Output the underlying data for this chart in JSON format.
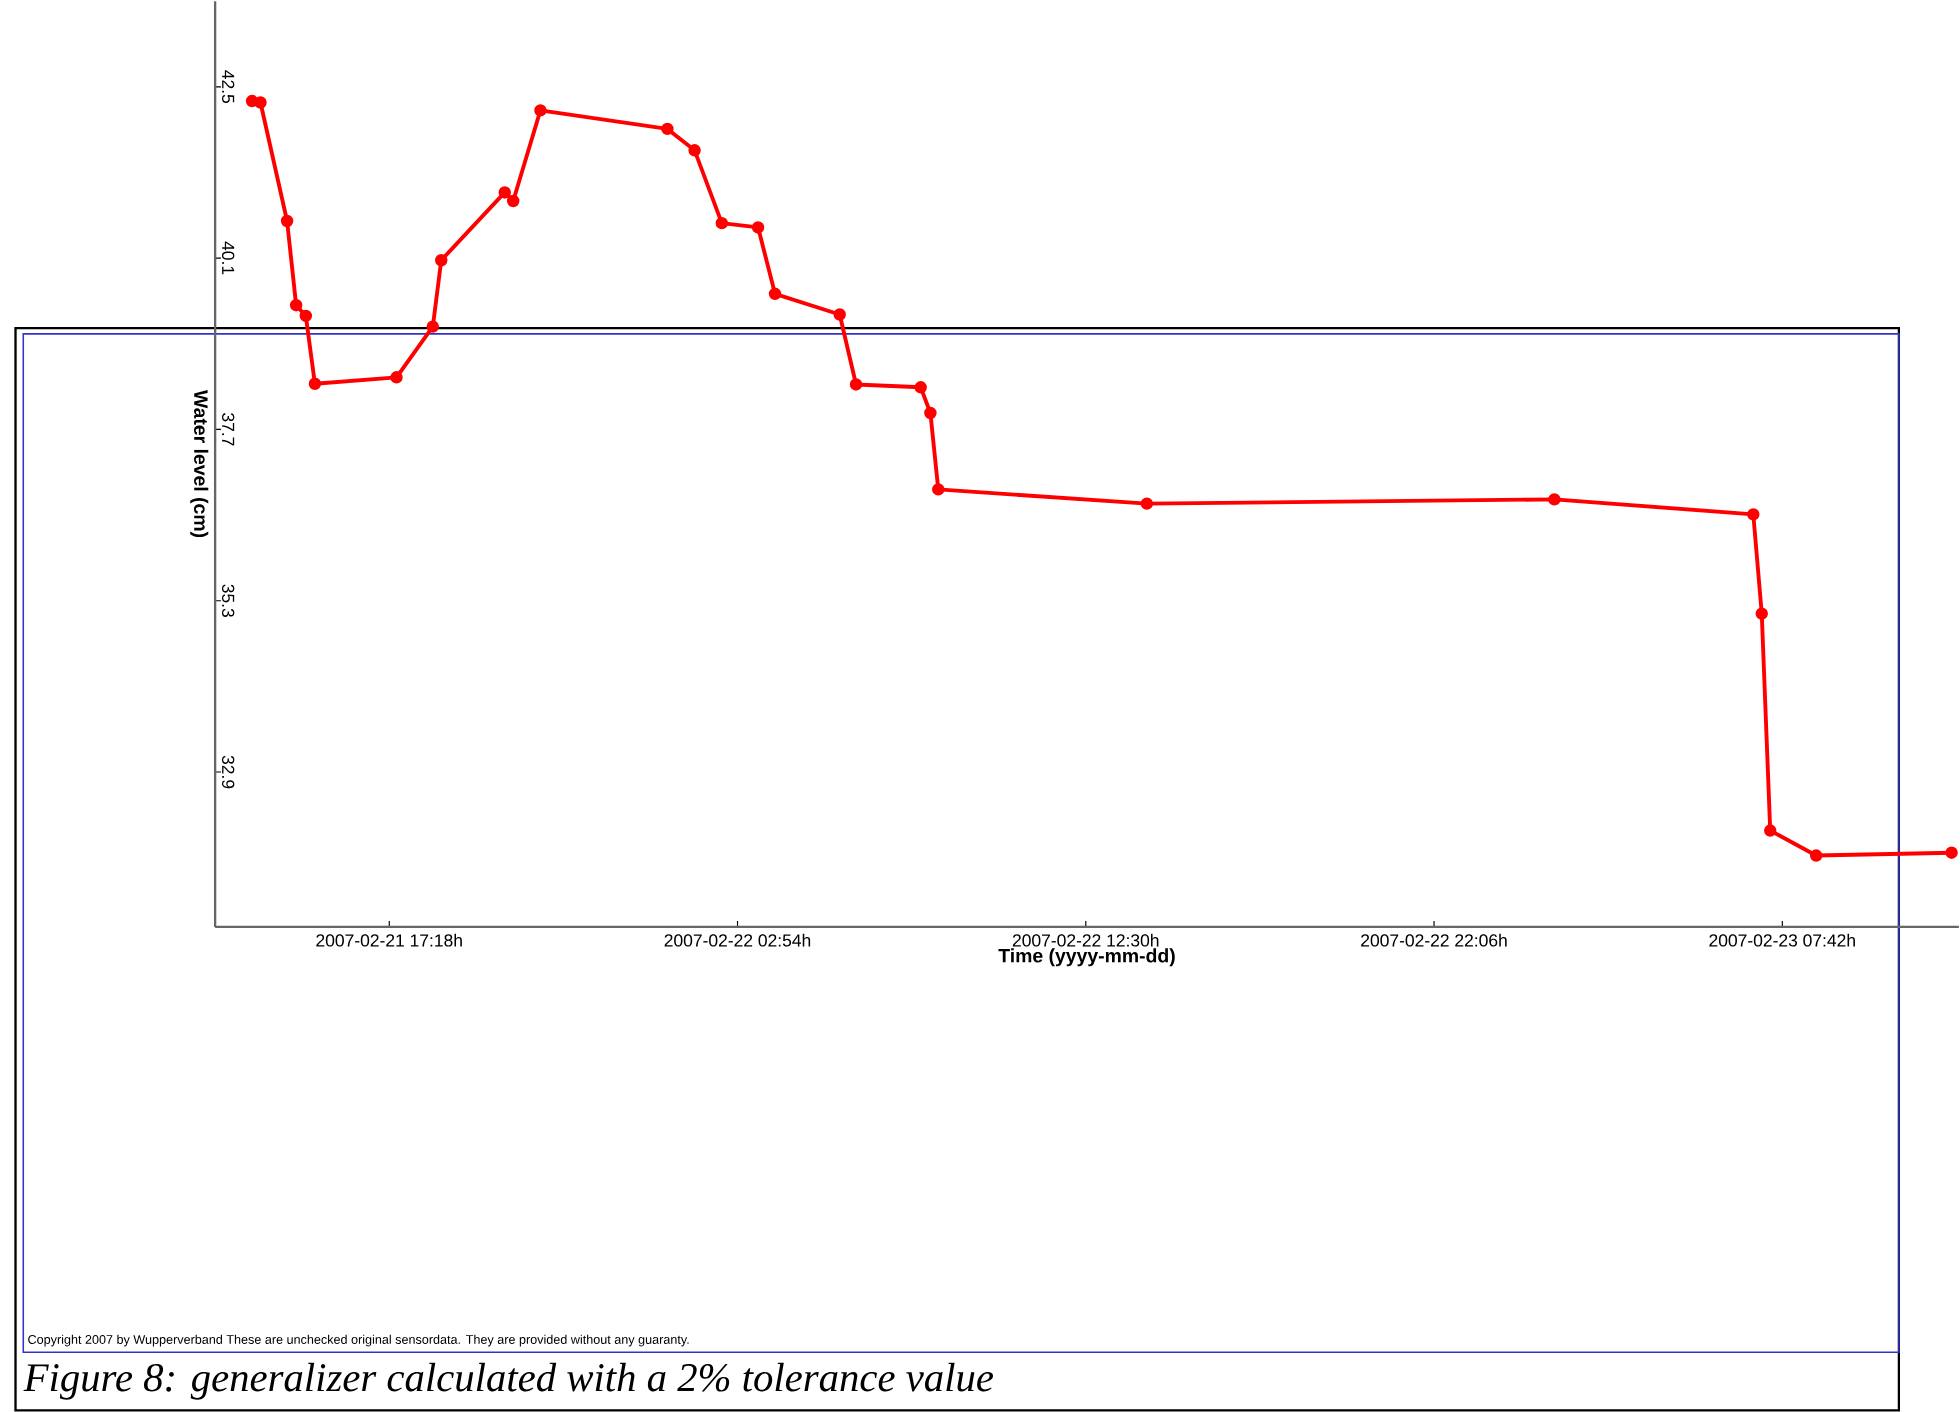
{
  "chart_data": {
    "type": "line",
    "xlabel": "Time (yyyy-mm-dd)",
    "ylabel": "Water level (cm)",
    "annotations": [
      "Copyright 2007 by Wupperverband These are unchecked original sensordata. They are provided without any guaranty.",
      "Figure 8: generalizer calculated with a 2% tolerance value"
    ],
    "x": [
      "2007-02-21T13:31",
      "2007-02-21T13:45",
      "2007-02-21T14:29",
      "2007-02-21T14:44",
      "2007-02-21T15:00",
      "2007-02-21T15:15",
      "2007-02-21T17:30",
      "2007-02-21T18:30",
      "2007-02-21T18:44",
      "2007-02-21T20:29",
      "2007-02-21T20:43",
      "2007-02-21T21:28",
      "2007-02-22T00:58",
      "2007-02-22T01:43",
      "2007-02-22T02:28",
      "2007-02-22T03:28",
      "2007-02-22T03:56",
      "2007-02-22T05:43",
      "2007-02-22T06:10",
      "2007-02-22T07:57",
      "2007-02-22T08:13",
      "2007-02-22T08:26",
      "2007-02-22T14:11",
      "2007-02-23T01:25",
      "2007-02-23T06:54",
      "2007-02-23T07:08",
      "2007-02-23T07:22",
      "2007-02-23T08:38",
      "2007-02-23T12:22"
    ],
    "values": [
      42.3,
      42.28,
      40.62,
      39.44,
      39.29,
      38.34,
      38.43,
      39.14,
      40.07,
      41.02,
      40.9,
      42.17,
      41.91,
      41.61,
      40.59,
      40.53,
      39.6,
      39.31,
      38.33,
      38.29,
      37.93,
      36.86,
      36.66,
      36.72,
      36.51,
      35.12,
      32.08,
      31.73,
      31.77
    ],
    "color": "#ff0000",
    "marker": "circle",
    "line_style": "solid",
    "grid": false,
    "xlim": [
      "2007-02-21T12:30",
      "2007-02-23T12:34"
    ],
    "xticks": [
      {
        "value": "2007-02-21T17:18",
        "label": "2007-02-21 17:18h"
      },
      {
        "value": "2007-02-22T02:54",
        "label": "2007-02-22 02:54h"
      },
      {
        "value": "2007-02-22T12:30",
        "label": "2007-02-22 12:30h"
      },
      {
        "value": "2007-02-22T22:06",
        "label": "2007-02-22 22:06h"
      },
      {
        "value": "2007-02-23T07:42",
        "label": "2007-02-23 07:42h"
      }
    ],
    "ylim": [
      30.73,
      43.7
    ],
    "yticks": [
      32.9,
      35.3,
      37.7,
      40.1,
      42.5
    ]
  }
}
